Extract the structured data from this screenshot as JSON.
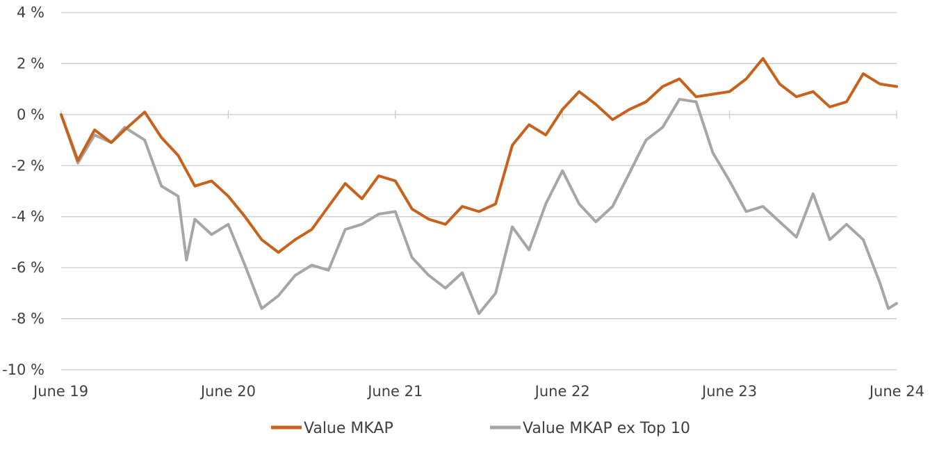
{
  "chart_data": {
    "type": "line",
    "title": "",
    "xlabel": "",
    "ylabel": "",
    "x_ticks": [
      "June 19",
      "June 20",
      "June 21",
      "June 22",
      "June 23",
      "June 24"
    ],
    "xlim": [
      "June 19",
      "June 24"
    ],
    "ylim": [
      -10,
      4
    ],
    "y_ticks": [
      4,
      2,
      0,
      -2,
      -4,
      -6,
      -8,
      -10
    ],
    "y_tick_labels": [
      "4 %",
      "2 %",
      "0 %",
      "-2 %",
      "-4 %",
      "-6 %",
      "-8 %",
      "-10 %"
    ],
    "grid": "horizontal",
    "legend_position": "bottom",
    "series": [
      {
        "name": "Value MKAP",
        "color": "#C8611A",
        "x": [
          2019.0,
          2019.1,
          2019.2,
          2019.3,
          2019.38,
          2019.5,
          2019.6,
          2019.7,
          2019.8,
          2019.9,
          2020.0,
          2020.1,
          2020.2,
          2020.3,
          2020.4,
          2020.5,
          2020.6,
          2020.7,
          2020.8,
          2020.9,
          2021.0,
          2021.1,
          2021.2,
          2021.3,
          2021.4,
          2021.5,
          2021.6,
          2021.7,
          2021.8,
          2021.9,
          2022.0,
          2022.1,
          2022.2,
          2022.3,
          2022.4,
          2022.5,
          2022.6,
          2022.7,
          2022.8,
          2022.9,
          2023.0,
          2023.1,
          2023.2,
          2023.3,
          2023.4,
          2023.5,
          2023.6,
          2023.7,
          2023.8,
          2023.9,
          2024.0
        ],
        "values": [
          0.0,
          -1.8,
          -0.6,
          -1.1,
          -0.6,
          0.1,
          -0.9,
          -1.6,
          -2.8,
          -2.6,
          -3.2,
          -4.0,
          -4.9,
          -5.4,
          -4.9,
          -4.5,
          -3.6,
          -2.7,
          -3.3,
          -2.4,
          -2.6,
          -3.7,
          -4.1,
          -4.3,
          -3.6,
          -3.8,
          -3.5,
          -1.2,
          -0.4,
          -0.8,
          0.2,
          0.9,
          0.4,
          -0.2,
          0.2,
          0.5,
          1.1,
          1.4,
          0.7,
          0.8,
          0.9,
          1.4,
          2.2,
          1.2,
          0.7,
          0.9,
          0.3,
          0.5,
          1.6,
          1.2,
          1.1
        ]
      },
      {
        "name": "Value MKAP ex Top 10",
        "color": "#A9A5A2",
        "x": [
          2019.0,
          2019.1,
          2019.2,
          2019.3,
          2019.38,
          2019.5,
          2019.6,
          2019.7,
          2019.75,
          2019.8,
          2019.9,
          2020.0,
          2020.1,
          2020.2,
          2020.3,
          2020.4,
          2020.5,
          2020.6,
          2020.7,
          2020.8,
          2020.9,
          2021.0,
          2021.1,
          2021.2,
          2021.3,
          2021.4,
          2021.5,
          2021.6,
          2021.7,
          2021.8,
          2021.9,
          2022.0,
          2022.1,
          2022.2,
          2022.3,
          2022.4,
          2022.5,
          2022.6,
          2022.7,
          2022.8,
          2022.9,
          2023.0,
          2023.1,
          2023.2,
          2023.3,
          2023.4,
          2023.5,
          2023.6,
          2023.7,
          2023.8,
          2023.9,
          2023.95,
          2024.0
        ],
        "values": [
          0.0,
          -1.9,
          -0.8,
          -1.1,
          -0.5,
          -1.0,
          -2.8,
          -3.2,
          -5.7,
          -4.1,
          -4.7,
          -4.3,
          -5.9,
          -7.6,
          -7.1,
          -6.3,
          -5.9,
          -6.1,
          -4.5,
          -4.3,
          -3.9,
          -3.8,
          -5.6,
          -6.3,
          -6.8,
          -6.2,
          -7.8,
          -7.0,
          -4.4,
          -5.3,
          -3.5,
          -2.2,
          -3.5,
          -4.2,
          -3.6,
          -2.3,
          -1.0,
          -0.5,
          0.6,
          0.5,
          -1.5,
          -2.6,
          -3.8,
          -3.6,
          -4.2,
          -4.8,
          -3.1,
          -4.9,
          -4.3,
          -4.9,
          -6.6,
          -7.6,
          -7.4
        ]
      }
    ]
  },
  "legend": {
    "items": [
      {
        "label": "Value MKAP",
        "color": "#C8611A"
      },
      {
        "label": "Value MKAP ex Top 10",
        "color": "#A9A5A2"
      }
    ]
  }
}
